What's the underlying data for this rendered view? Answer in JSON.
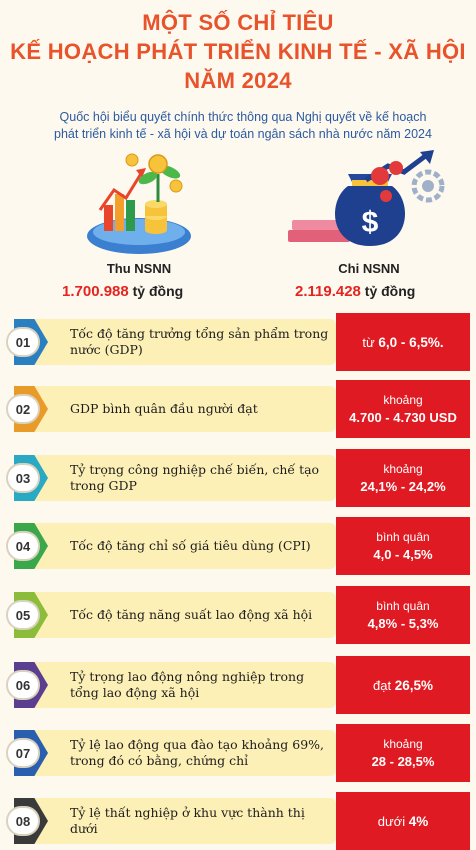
{
  "header": {
    "title_line1": "MỘT SỐ CHỈ TIÊU",
    "title_line2": "KẾ HOẠCH PHÁT TRIỂN KINH TẾ - XÃ HỘI",
    "title_line3": "NĂM 2024",
    "subtitle_line1": "Quốc hội biểu quyết chính thức thông qua Nghị quyết về kế hoạch",
    "subtitle_line2": "phát triển kinh tế - xã hội và dự toán ngân sách nhà nước năm 2024"
  },
  "budget": {
    "revenue": {
      "label": "Thu NSNN",
      "value": "1.700.988",
      "unit": "tỷ đồng"
    },
    "expenditure": {
      "label": "Chi NSNN",
      "value": "2.119.428",
      "unit": "tỷ đồng"
    }
  },
  "colors": {
    "accent": "#e8532b",
    "target_box": "#e01a22",
    "row_fill": "#fdf0b6"
  },
  "icons": [
    "plant-coins-chart-icon",
    "money-bag-icon"
  ],
  "targets": [
    {
      "no": "01",
      "label": "Tốc độ tăng trưởng tổng sản phẩm trong nước (GDP)",
      "prefix": "",
      "inline_prefix": "từ ",
      "value": "6,0 - 6,5%.",
      "color": "#2a7fc0"
    },
    {
      "no": "02",
      "label": "GDP bình quân đầu người đạt",
      "prefix": "khoảng",
      "inline_prefix": "",
      "value": "4.700 - 4.730 USD",
      "color": "#e99b2a"
    },
    {
      "no": "03",
      "label": "Tỷ trọng công nghiệp chế biến, chế tạo trong GDP",
      "prefix": "khoảng",
      "inline_prefix": "",
      "value": "24,1% - 24,2%",
      "color": "#2aa9c4"
    },
    {
      "no": "04",
      "label": "Tốc độ tăng chỉ số giá tiêu dùng (CPI)",
      "prefix": "bình quân",
      "inline_prefix": "",
      "value": "4,0 - 4,5%",
      "color": "#3aa84a"
    },
    {
      "no": "05",
      "label": "Tốc độ tăng năng suất lao động xã hội",
      "prefix": "bình quân",
      "inline_prefix": "",
      "value": "4,8% - 5,3%",
      "color": "#8bbd3a"
    },
    {
      "no": "06",
      "label": "Tỷ trọng lao động nông nghiệp trong tổng lao động xã hội",
      "prefix": "",
      "inline_prefix": "đạt ",
      "value": "26,5%",
      "color": "#5b3e8f"
    },
    {
      "no": "07",
      "label": "Tỷ lệ lao động qua đào tạo khoảng 69%, trong đó có bằng, chứng chỉ",
      "prefix": "khoảng",
      "inline_prefix": "",
      "value": "28 - 28,5%",
      "color": "#2a5fb0"
    },
    {
      "no": "08",
      "label": "Tỷ lệ thất nghiệp ở khu vực thành thị dưới",
      "prefix": "",
      "inline_prefix": "dưới ",
      "value": "4%",
      "color": "#3a3a3a"
    }
  ]
}
